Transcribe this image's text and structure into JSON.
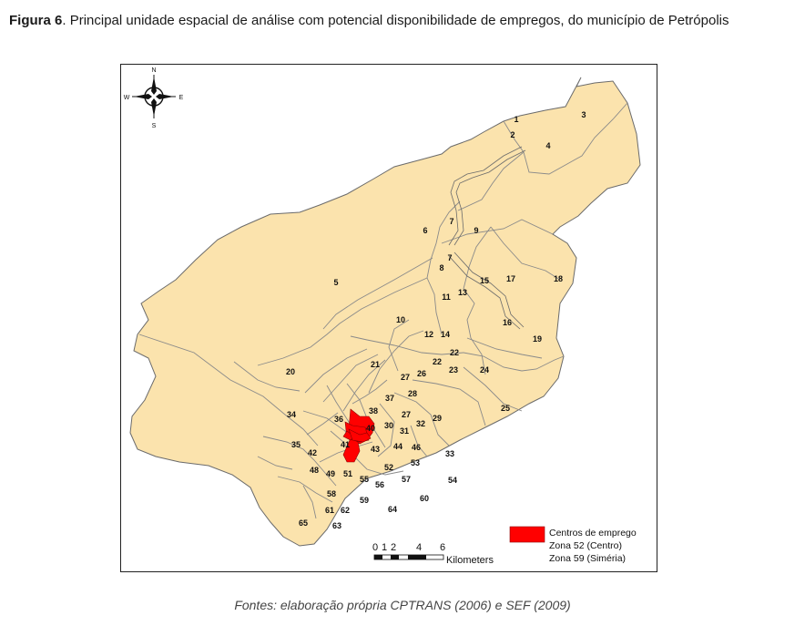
{
  "figure": {
    "label": "Figura 6",
    "title": ". Principal unidade espacial de análise com potencial disponibilidade de empregos, do município de Petrópolis",
    "caption": "Fontes: elaboração própria CPTRANS (2006) e SEF (2009)"
  },
  "map": {
    "colors": {
      "zone_fill": "#fbe3ad",
      "zone_stroke": "#6b6b6b",
      "highlight_fill": "#ff0000",
      "frame": "#222222"
    },
    "compass": {
      "north": "N",
      "south": "S",
      "east": "E",
      "west": "W"
    },
    "zone_labels": [
      "1",
      "2",
      "3",
      "4",
      "5",
      "6",
      "7",
      "7",
      "8",
      "9",
      "10",
      "11",
      "12",
      "13",
      "14",
      "15",
      "16",
      "17",
      "18",
      "19",
      "20",
      "21",
      "22",
      "22",
      "23",
      "24",
      "25",
      "26",
      "27",
      "27",
      "28",
      "29",
      "30",
      "31",
      "32",
      "33",
      "34",
      "35",
      "36",
      "37",
      "38",
      "40",
      "41",
      "42",
      "43",
      "44",
      "46",
      "48",
      "49",
      "51",
      "52",
      "53",
      "54",
      "55",
      "56",
      "57",
      "58",
      "59",
      "60",
      "61",
      "62",
      "63",
      "64",
      "65"
    ],
    "highlighted_zones": [
      "52",
      "59"
    ],
    "legend": {
      "title": "Centros de emprego",
      "item1": "Zona 52 (Centro)",
      "item2": "Zona 59 (Siméria)"
    },
    "scale_bar": {
      "ticks": [
        "0",
        "1",
        "2",
        "4",
        "6"
      ],
      "unit": "Kilometers"
    }
  }
}
